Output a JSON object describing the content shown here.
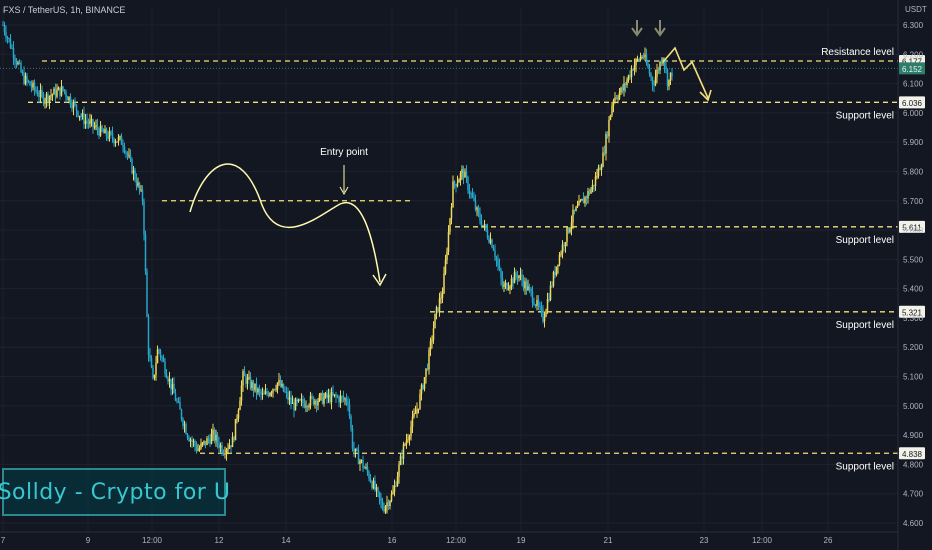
{
  "header": {
    "symbol": "FXS / TetherUS, 1h, BINANCE"
  },
  "price_axis": {
    "currency": "USDT"
  },
  "brand": {
    "text": "Solldy - Crypto for U"
  },
  "colors": {
    "background": "#131722",
    "grid": "#1e222d",
    "axis_text": "#b2b5be",
    "bull_candle": "#f0d95a",
    "bear_candle": "#26a6c9",
    "level_line": "#f4e07a",
    "annotation": "#fff9b0",
    "arrow_marker": "#8a8a70",
    "current_price_tag": "#2e7d6b"
  },
  "chart_data": {
    "type": "candlestick",
    "symbol": "FXS / TetherUS",
    "timeframe": "1h",
    "exchange": "BINANCE",
    "y_unit": "USDT",
    "ylim": [
      4.6,
      6.35
    ],
    "y_ticks": [
      6.3,
      6.2,
      6.1,
      6.0,
      5.9,
      5.8,
      5.7,
      5.6,
      5.5,
      5.4,
      5.3,
      5.2,
      5.1,
      5.0,
      4.9,
      4.8,
      4.7,
      4.6
    ],
    "x_ticks": [
      "7",
      "9",
      "12:00",
      "12",
      "14",
      "16",
      "12:00",
      "19",
      "21",
      "23",
      "12:00",
      "26"
    ],
    "grid": true,
    "current_price": 6.152,
    "levels": [
      {
        "label": "Resistance level",
        "price": 6.177
      },
      {
        "label": "Support level",
        "price": 6.036
      },
      {
        "label": "Support level",
        "price": 5.611
      },
      {
        "label": "Support level",
        "price": 5.321
      },
      {
        "label": "Support level",
        "price": 4.838
      }
    ],
    "annotations": [
      {
        "text": "Entry point",
        "price": 5.7
      }
    ],
    "price_path": [
      [
        0,
        6.3
      ],
      [
        20,
        6.12
      ],
      [
        40,
        6.05
      ],
      [
        60,
        6.08
      ],
      [
        80,
        5.98
      ],
      [
        100,
        5.93
      ],
      [
        120,
        5.9
      ],
      [
        130,
        5.8
      ],
      [
        140,
        5.7
      ],
      [
        145,
        5.2
      ],
      [
        150,
        5.08
      ],
      [
        155,
        5.2
      ],
      [
        170,
        5.05
      ],
      [
        185,
        4.9
      ],
      [
        195,
        4.85
      ],
      [
        210,
        4.9
      ],
      [
        220,
        4.85
      ],
      [
        230,
        4.88
      ],
      [
        240,
        5.1
      ],
      [
        260,
        5.03
      ],
      [
        275,
        5.08
      ],
      [
        290,
        5.0
      ],
      [
        310,
        5.02
      ],
      [
        330,
        5.03
      ],
      [
        345,
        5.02
      ],
      [
        350,
        4.85
      ],
      [
        365,
        4.77
      ],
      [
        380,
        4.65
      ],
      [
        390,
        4.7
      ],
      [
        400,
        4.85
      ],
      [
        415,
        5.0
      ],
      [
        425,
        5.15
      ],
      [
        432,
        5.3
      ],
      [
        440,
        5.4
      ],
      [
        450,
        5.75
      ],
      [
        460,
        5.8
      ],
      [
        475,
        5.65
      ],
      [
        490,
        5.55
      ],
      [
        500,
        5.4
      ],
      [
        515,
        5.45
      ],
      [
        530,
        5.37
      ],
      [
        540,
        5.3
      ],
      [
        555,
        5.5
      ],
      [
        570,
        5.65
      ],
      [
        590,
        5.75
      ],
      [
        600,
        5.85
      ],
      [
        610,
        6.05
      ],
      [
        620,
        6.08
      ],
      [
        630,
        6.16
      ],
      [
        640,
        6.2
      ],
      [
        650,
        6.1
      ],
      [
        660,
        6.2
      ],
      [
        665,
        6.1
      ],
      [
        670,
        6.15
      ]
    ]
  }
}
